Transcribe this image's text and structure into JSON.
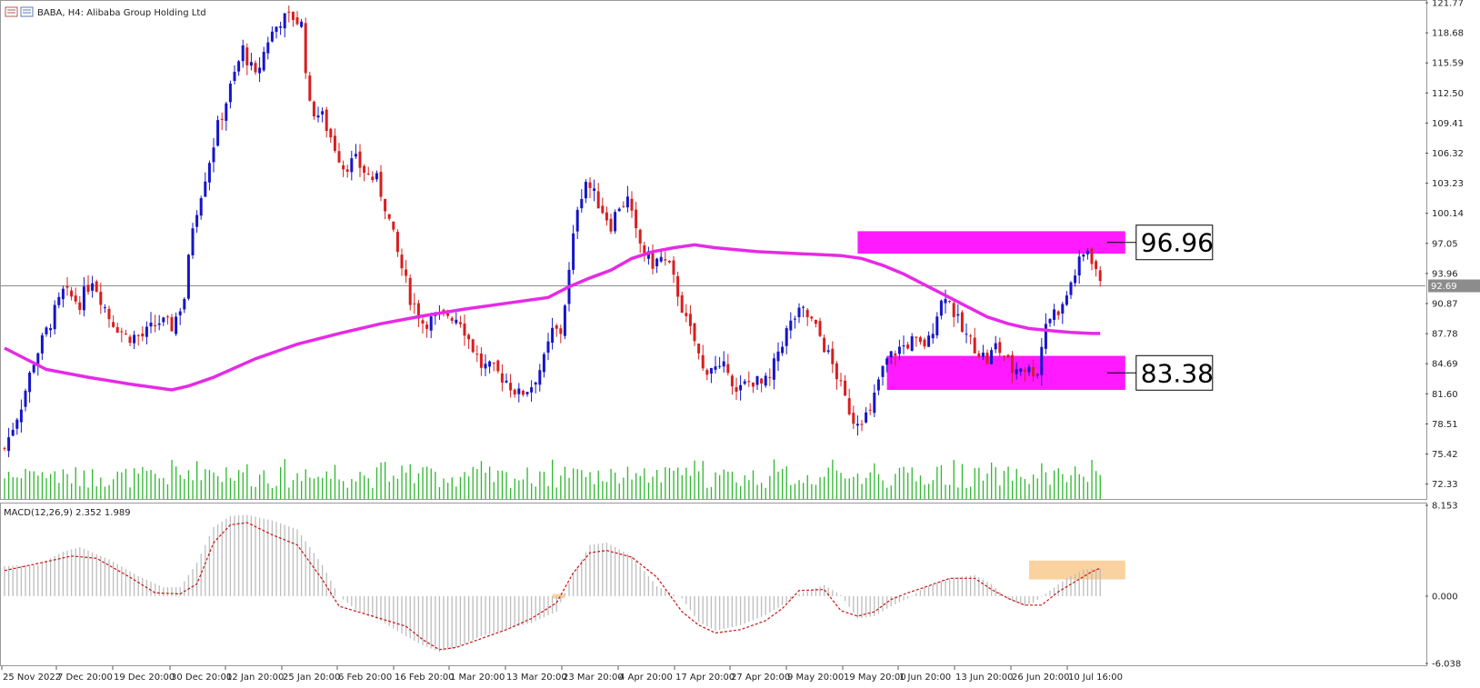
{
  "header": {
    "title": "BABA, H4:  Alibaba Group Holding Ltd",
    "icon": "chart-window-icon"
  },
  "colors": {
    "bull_candle": "#1515c8",
    "bear_candle": "#d81e1e",
    "moving_average": "#e62ae6",
    "zone": "#ff1aff",
    "volume": "#2db82d",
    "macd_histogram": "#bdbdbd",
    "macd_signal": "#c81414",
    "macd_highlight": "#fad2a0",
    "price_line": "#8c8c8c"
  },
  "chart_data": [
    {
      "type": "candlestick",
      "symbol": "BABA",
      "timeframe": "H4",
      "y_ticks": [
        "121.77",
        "118.68",
        "115.59",
        "112.50",
        "109.41",
        "106.32",
        "103.23",
        "100.14",
        "97.05",
        "93.96",
        "90.87",
        "87.78",
        "84.69",
        "81.60",
        "78.51",
        "75.42",
        "72.33"
      ],
      "ylim": [
        70.8,
        121.77
      ],
      "current_price": "92.69",
      "x_ticks": [
        "25 Nov 2022",
        "7 Dec 20:00",
        "19 Dec 20:00",
        "30 Dec 20:00",
        "12 Jan 20:00",
        "25 Jan 20:00",
        "6 Feb 20:00",
        "16 Feb 20:00",
        "1 Mar 20:00",
        "13 Mar 20:00",
        "23 Mar 20:00",
        "4 Apr 20:00",
        "17 Apr 20:00",
        "27 Apr 20:00",
        "9 May 20:00",
        "19 May 20:00",
        "1 Jun 20:00",
        "13 Jun 20:00",
        "26 Jun 20:00",
        "10 Jul 16:00"
      ],
      "anchors": [
        [
          0,
          76
        ],
        [
          4,
          80.5
        ],
        [
          7,
          85
        ],
        [
          10,
          88
        ],
        [
          14,
          92
        ],
        [
          18,
          91
        ],
        [
          21,
          93.5
        ],
        [
          25,
          89.5
        ],
        [
          29,
          87.5
        ],
        [
          33,
          87.5
        ],
        [
          37,
          89
        ],
        [
          40,
          88.5
        ],
        [
          43,
          91.5
        ],
        [
          45,
          99
        ],
        [
          48,
          104
        ],
        [
          51,
          109
        ],
        [
          54,
          113
        ],
        [
          57,
          117
        ],
        [
          60,
          114
        ],
        [
          63,
          118
        ],
        [
          66,
          120
        ],
        [
          69,
          120.3
        ],
        [
          71,
          119.5
        ],
        [
          73,
          111
        ],
        [
          76,
          110
        ],
        [
          79,
          107
        ],
        [
          81,
          105
        ],
        [
          84,
          105.5
        ],
        [
          87,
          104
        ],
        [
          89,
          103.5
        ],
        [
          91,
          101
        ],
        [
          94,
          96
        ],
        [
          97,
          91.5
        ],
        [
          100,
          89
        ],
        [
          103,
          89.2
        ],
        [
          106,
          89.8
        ],
        [
          109,
          89.3
        ],
        [
          111,
          87.2
        ],
        [
          114,
          84.5
        ],
        [
          117,
          84
        ],
        [
          120,
          83
        ],
        [
          123,
          81.5
        ],
        [
          126,
          82.5
        ],
        [
          129,
          85
        ],
        [
          131,
          88
        ],
        [
          133,
          88
        ],
        [
          135,
          94
        ],
        [
          137,
          101
        ],
        [
          139,
          103.5
        ],
        [
          141,
          102
        ],
        [
          143,
          100.5
        ],
        [
          145,
          99
        ],
        [
          147,
          101
        ],
        [
          149,
          101.5
        ],
        [
          151,
          98
        ],
        [
          153,
          96
        ],
        [
          155,
          95
        ],
        [
          157,
          95.5
        ],
        [
          159,
          94.5
        ],
        [
          161,
          92
        ],
        [
          163,
          89
        ],
        [
          165,
          87
        ],
        [
          167,
          84
        ],
        [
          169,
          84.5
        ],
        [
          171,
          83.8
        ],
        [
          173,
          84.5
        ],
        [
          175,
          81.5
        ],
        [
          177,
          82.5
        ],
        [
          179,
          83
        ],
        [
          181,
          82.5
        ],
        [
          183,
          83
        ],
        [
          185,
          86
        ],
        [
          187,
          88
        ],
        [
          189,
          89.5
        ],
        [
          191,
          90
        ],
        [
          193,
          89
        ],
        [
          195,
          87.5
        ],
        [
          197,
          85.5
        ],
        [
          199,
          83.5
        ],
        [
          201,
          81
        ],
        [
          203,
          79
        ],
        [
          205,
          79.2
        ],
        [
          207,
          79.5
        ],
        [
          209,
          83
        ],
        [
          211,
          85
        ],
        [
          213,
          86
        ],
        [
          215,
          86.5
        ],
        [
          217,
          87
        ],
        [
          219,
          86.5
        ],
        [
          221,
          87
        ],
        [
          223,
          90
        ],
        [
          225,
          92
        ],
        [
          227,
          90
        ],
        [
          229,
          88
        ],
        [
          231,
          87
        ],
        [
          233,
          86
        ],
        [
          235,
          85
        ],
        [
          237,
          86.5
        ],
        [
          239,
          85.5
        ],
        [
          241,
          84
        ],
        [
          243,
          84.5
        ],
        [
          245,
          84
        ],
        [
          247,
          84
        ],
        [
          249,
          89
        ],
        [
          251,
          90
        ],
        [
          253,
          90.5
        ],
        [
          255,
          93
        ],
        [
          257,
          95
        ],
        [
          259,
          96.5
        ],
        [
          261,
          94.5
        ],
        [
          262,
          92.6
        ]
      ],
      "moving_average": [
        [
          0,
          86.3
        ],
        [
          10,
          84.1
        ],
        [
          20,
          83.3
        ],
        [
          30,
          82.6
        ],
        [
          40,
          82.0
        ],
        [
          44,
          82.4
        ],
        [
          50,
          83.3
        ],
        [
          60,
          85.2
        ],
        [
          70,
          86.7
        ],
        [
          80,
          87.8
        ],
        [
          90,
          88.8
        ],
        [
          100,
          89.6
        ],
        [
          110,
          90.3
        ],
        [
          120,
          90.9
        ],
        [
          130,
          91.5
        ],
        [
          135,
          92.6
        ],
        [
          140,
          93.5
        ],
        [
          145,
          94.3
        ],
        [
          150,
          95.5
        ],
        [
          155,
          96.2
        ],
        [
          160,
          96.6
        ],
        [
          165,
          96.9
        ],
        [
          170,
          96.6
        ],
        [
          180,
          96.2
        ],
        [
          190,
          96.0
        ],
        [
          200,
          95.8
        ],
        [
          205,
          95.5
        ],
        [
          210,
          94.8
        ],
        [
          215,
          93.9
        ],
        [
          220,
          92.8
        ],
        [
          225,
          91.7
        ],
        [
          230,
          90.6
        ],
        [
          235,
          89.5
        ],
        [
          240,
          88.8
        ],
        [
          245,
          88.3
        ],
        [
          250,
          88.1
        ],
        [
          255,
          87.9
        ],
        [
          260,
          87.8
        ],
        [
          262,
          87.8
        ]
      ],
      "zones": [
        {
          "label": "96.96",
          "from_index": 204,
          "to_index": 268,
          "y_top": 98.3,
          "y_bottom": 96.0
        },
        {
          "label": "83.38",
          "from_index": 211,
          "to_index": 268,
          "y_top": 85.5,
          "y_bottom": 82.0
        }
      ]
    },
    {
      "type": "bar+line",
      "indicator": "MACD(12,26,9) 2.352 1.989",
      "y_ticks": [
        "8.153",
        "0.000",
        "-6.038"
      ],
      "ylim": [
        -6.038,
        8.153
      ],
      "histogram": [
        [
          0,
          2.7
        ],
        [
          8,
          2.8
        ],
        [
          14,
          4.0
        ],
        [
          18,
          4.4
        ],
        [
          25,
          3.3
        ],
        [
          32,
          1.8
        ],
        [
          38,
          0.8
        ],
        [
          42,
          0.8
        ],
        [
          46,
          3.0
        ],
        [
          50,
          6.2
        ],
        [
          54,
          7.2
        ],
        [
          58,
          7.3
        ],
        [
          64,
          6.8
        ],
        [
          70,
          6.0
        ],
        [
          76,
          2.8
        ],
        [
          80,
          0.0
        ],
        [
          84,
          -1.2
        ],
        [
          90,
          -2.2
        ],
        [
          96,
          -3.6
        ],
        [
          100,
          -4.4
        ],
        [
          104,
          -5.0
        ],
        [
          108,
          -4.6
        ],
        [
          114,
          -3.6
        ],
        [
          120,
          -3.0
        ],
        [
          126,
          -2.4
        ],
        [
          132,
          -1.4
        ],
        [
          136,
          2.0
        ],
        [
          140,
          4.6
        ],
        [
          144,
          4.8
        ],
        [
          150,
          3.6
        ],
        [
          156,
          0.9
        ],
        [
          162,
          -0.2
        ],
        [
          166,
          -2.3
        ],
        [
          170,
          -3.1
        ],
        [
          176,
          -2.6
        ],
        [
          182,
          -1.7
        ],
        [
          186,
          -0.8
        ],
        [
          190,
          0.2
        ],
        [
          196,
          1.0
        ],
        [
          200,
          0.1
        ],
        [
          204,
          -2.0
        ],
        [
          208,
          -1.8
        ],
        [
          212,
          -0.9
        ],
        [
          216,
          -0.2
        ],
        [
          220,
          0.8
        ],
        [
          226,
          1.6
        ],
        [
          232,
          1.9
        ],
        [
          236,
          1.1
        ],
        [
          240,
          -0.3
        ],
        [
          244,
          -0.9
        ],
        [
          246,
          -0.6
        ],
        [
          250,
          0.5
        ],
        [
          254,
          1.6
        ],
        [
          258,
          2.4
        ],
        [
          262,
          2.5
        ]
      ],
      "signal": [
        [
          0,
          2.3
        ],
        [
          10,
          3.1
        ],
        [
          16,
          3.6
        ],
        [
          22,
          3.4
        ],
        [
          30,
          1.7
        ],
        [
          36,
          0.3
        ],
        [
          42,
          0.2
        ],
        [
          46,
          1.1
        ],
        [
          50,
          4.8
        ],
        [
          54,
          6.4
        ],
        [
          58,
          6.6
        ],
        [
          64,
          5.5
        ],
        [
          70,
          4.6
        ],
        [
          76,
          1.5
        ],
        [
          80,
          -0.9
        ],
        [
          88,
          -1.8
        ],
        [
          96,
          -2.7
        ],
        [
          100,
          -3.9
        ],
        [
          104,
          -4.8
        ],
        [
          108,
          -4.6
        ],
        [
          114,
          -3.8
        ],
        [
          120,
          -3.0
        ],
        [
          126,
          -2.0
        ],
        [
          132,
          -0.6
        ],
        [
          136,
          2.1
        ],
        [
          140,
          3.9
        ],
        [
          144,
          4.1
        ],
        [
          150,
          3.5
        ],
        [
          156,
          1.7
        ],
        [
          162,
          -1.4
        ],
        [
          166,
          -2.6
        ],
        [
          170,
          -3.3
        ],
        [
          176,
          -3.0
        ],
        [
          182,
          -2.2
        ],
        [
          186,
          -1.1
        ],
        [
          190,
          0.5
        ],
        [
          196,
          0.6
        ],
        [
          200,
          -1.3
        ],
        [
          204,
          -1.8
        ],
        [
          208,
          -1.4
        ],
        [
          212,
          -0.3
        ],
        [
          216,
          0.3
        ],
        [
          220,
          0.8
        ],
        [
          226,
          1.6
        ],
        [
          232,
          1.6
        ],
        [
          236,
          0.6
        ],
        [
          240,
          -0.2
        ],
        [
          244,
          -0.8
        ],
        [
          248,
          -0.8
        ],
        [
          252,
          0.4
        ],
        [
          256,
          1.3
        ],
        [
          260,
          2.2
        ],
        [
          262,
          2.5
        ]
      ],
      "highlights": [
        {
          "from_index": 245,
          "to_index": 268,
          "y_top": 3.2,
          "y_bottom": 1.5
        },
        {
          "from_index": 131,
          "to_index": 134,
          "y_top": 0.2,
          "y_bottom": -0.2
        }
      ]
    }
  ]
}
